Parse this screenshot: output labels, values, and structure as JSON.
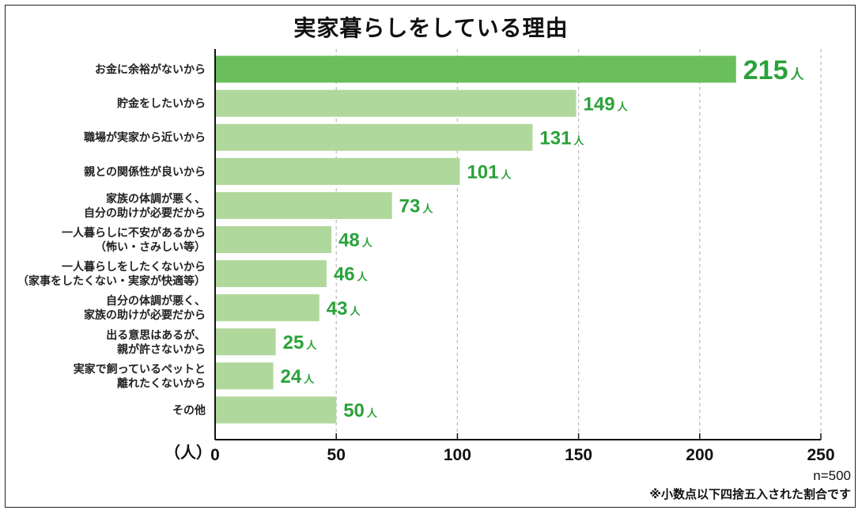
{
  "chart_data": {
    "type": "bar",
    "orientation": "horizontal",
    "title": "実家暮らしをしている理由",
    "categories": [
      [
        "お金に余裕がないから"
      ],
      [
        "貯金をしたいから"
      ],
      [
        "職場が実家から近いから"
      ],
      [
        "親との関係性が良いから"
      ],
      [
        "家族の体調が悪く、",
        "自分の助けが必要だから"
      ],
      [
        "一人暮らしに不安があるから",
        "（怖い・さみしい等）"
      ],
      [
        "一人暮らしをしたくないから",
        "（家事をしたくない・実家が快適等）"
      ],
      [
        "自分の体調が悪く、",
        "家族の助けが必要だから"
      ],
      [
        "出る意思はあるが、",
        "親が許さないから"
      ],
      [
        "実家で飼っているペットと",
        "離れたくないから"
      ],
      [
        "その他"
      ]
    ],
    "values": [
      215,
      149,
      131,
      101,
      73,
      48,
      46,
      43,
      25,
      24,
      50
    ],
    "value_unit": "人",
    "xlim": [
      0,
      250
    ],
    "xticks": [
      0,
      50,
      100,
      150,
      200,
      250
    ],
    "xlabel": "（人）",
    "grid": "vertical dashed",
    "colors": {
      "highlight_bar": "#6abf5c",
      "bar": "#b0d89c",
      "value_text": "#2aa23a",
      "grid": "#b8b8b8"
    }
  },
  "notes": {
    "sample": "n=500",
    "rounding": "※小数点以下四捨五入された割合です"
  }
}
